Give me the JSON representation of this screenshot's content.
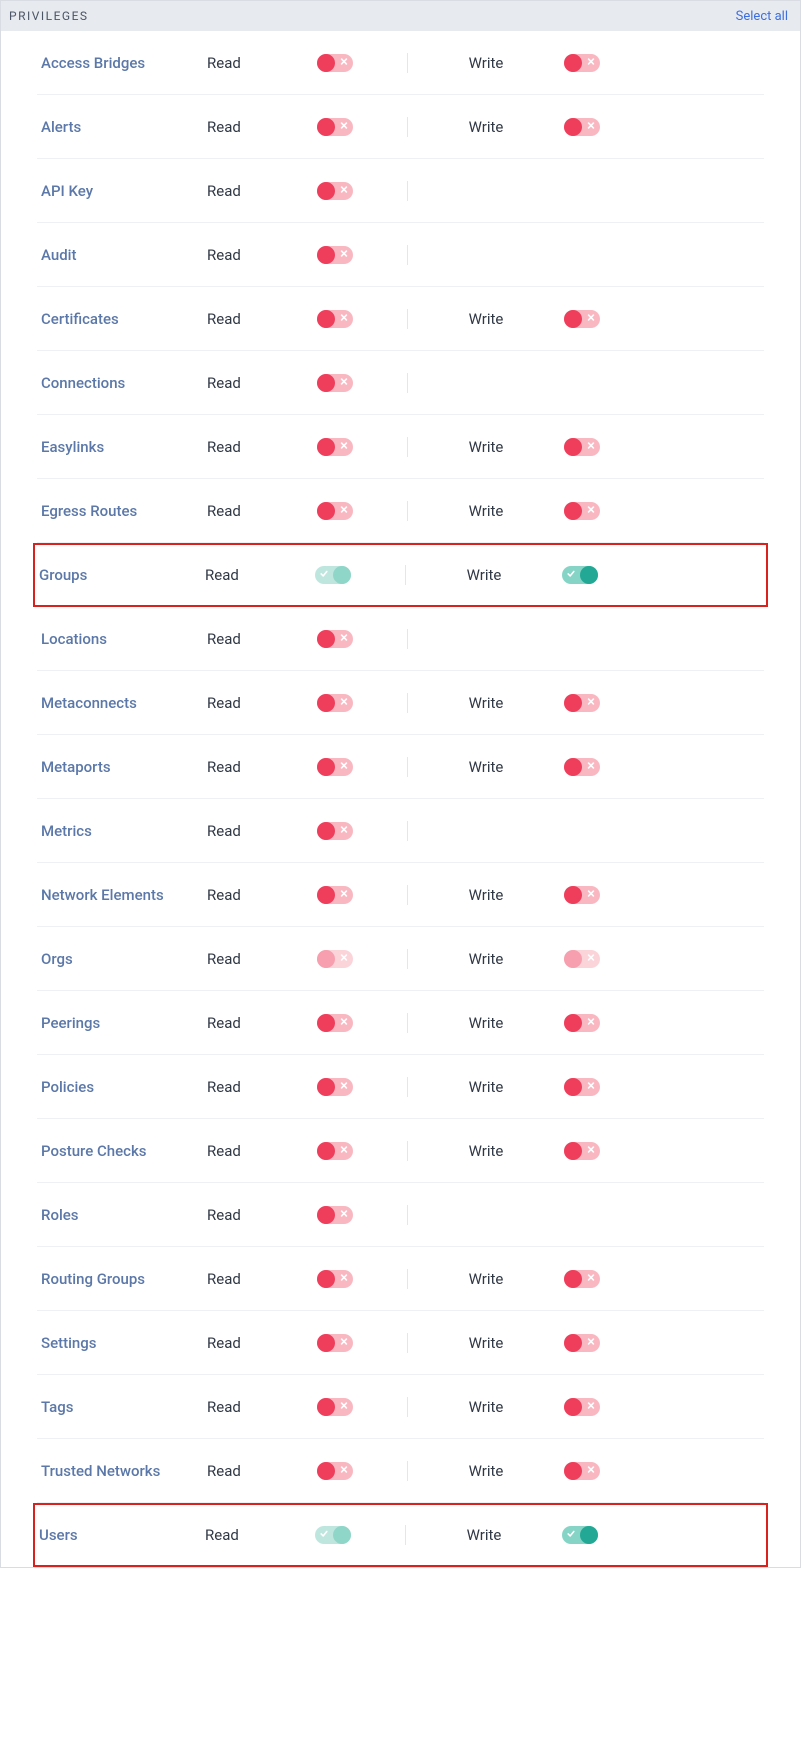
{
  "header": {
    "title": "PRIVILEGES",
    "select_all": "Select all"
  },
  "labels": {
    "read": "Read",
    "write": "Write"
  },
  "colors": {
    "off_red_knob": "#ef3e5b",
    "off_red_track": "#f9b8c1",
    "off_red_faded_knob": "#f79fae",
    "off_red_faded_track": "#fbd4da",
    "on_teal_knob": "#22a894",
    "on_teal_track": "#86d4c6",
    "on_teal_faded_knob": "#8fd6c9",
    "on_teal_faded_track": "#bfe6de",
    "priv_name_text": "#5b78a8",
    "body_text": "#303846",
    "link": "#3e6fe0",
    "header_bg": "#e7eaee",
    "row_divider": "#eef0f3",
    "highlight_border": "#d9211e"
  },
  "privileges": [
    {
      "name": "Access Bridges",
      "read": "off-red",
      "write": "off-red",
      "highlight": false
    },
    {
      "name": "Alerts",
      "read": "off-red",
      "write": "off-red",
      "highlight": false
    },
    {
      "name": "API Key",
      "read": "off-red",
      "write": null,
      "highlight": false
    },
    {
      "name": "Audit",
      "read": "off-red",
      "write": null,
      "highlight": false
    },
    {
      "name": "Certificates",
      "read": "off-red",
      "write": "off-red",
      "highlight": false
    },
    {
      "name": "Connections",
      "read": "off-red",
      "write": null,
      "highlight": false
    },
    {
      "name": "Easylinks",
      "read": "off-red",
      "write": "off-red",
      "highlight": false
    },
    {
      "name": "Egress Routes",
      "read": "off-red",
      "write": "off-red",
      "highlight": false
    },
    {
      "name": "Groups",
      "read": "on-teal-faded",
      "write": "on-teal",
      "highlight": true
    },
    {
      "name": "Locations",
      "read": "off-red",
      "write": null,
      "highlight": false
    },
    {
      "name": "Metaconnects",
      "read": "off-red",
      "write": "off-red",
      "highlight": false
    },
    {
      "name": "Metaports",
      "read": "off-red",
      "write": "off-red",
      "highlight": false
    },
    {
      "name": "Metrics",
      "read": "off-red",
      "write": null,
      "highlight": false
    },
    {
      "name": "Network Elements",
      "read": "off-red",
      "write": "off-red",
      "highlight": false
    },
    {
      "name": "Orgs",
      "read": "off-red-faded",
      "write": "off-red-faded",
      "highlight": false
    },
    {
      "name": "Peerings",
      "read": "off-red",
      "write": "off-red",
      "highlight": false
    },
    {
      "name": "Policies",
      "read": "off-red",
      "write": "off-red",
      "highlight": false
    },
    {
      "name": "Posture Checks",
      "read": "off-red",
      "write": "off-red",
      "highlight": false
    },
    {
      "name": "Roles",
      "read": "off-red",
      "write": null,
      "highlight": false
    },
    {
      "name": "Routing Groups",
      "read": "off-red",
      "write": "off-red",
      "highlight": false
    },
    {
      "name": "Settings",
      "read": "off-red",
      "write": "off-red",
      "highlight": false
    },
    {
      "name": "Tags",
      "read": "off-red",
      "write": "off-red",
      "highlight": false
    },
    {
      "name": "Trusted Networks",
      "read": "off-red",
      "write": "off-red",
      "highlight": false
    },
    {
      "name": "Users",
      "read": "on-teal-faded",
      "write": "on-teal",
      "highlight": true
    }
  ]
}
